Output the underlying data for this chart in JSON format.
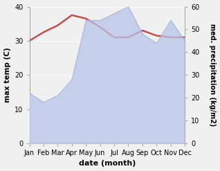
{
  "months": [
    "Jan",
    "Feb",
    "Mar",
    "Apr",
    "May",
    "Jun",
    "Jul",
    "Aug",
    "Sep",
    "Oct",
    "Nov",
    "Dec"
  ],
  "month_indices": [
    0,
    1,
    2,
    3,
    4,
    5,
    6,
    7,
    8,
    9,
    10,
    11
  ],
  "temperature": [
    30.0,
    32.5,
    34.5,
    37.5,
    36.5,
    34.0,
    31.0,
    31.0,
    33.0,
    31.5,
    31.0,
    31.0
  ],
  "precipitation": [
    22.0,
    18.0,
    21.0,
    28.0,
    54.0,
    54.0,
    57.0,
    60.0,
    48.0,
    44.0,
    54.0,
    45.0
  ],
  "temp_color": "#c0504d",
  "precip_color": "#b8c4e8",
  "precip_alpha": 0.75,
  "background_color": "#f0f0f0",
  "temp_ylim": [
    0,
    40
  ],
  "precip_ylim": [
    0,
    60
  ],
  "temp_yticks": [
    0,
    10,
    20,
    30,
    40
  ],
  "precip_yticks": [
    0,
    10,
    20,
    30,
    40,
    50,
    60
  ],
  "ylabel_left": "max temp (C)",
  "ylabel_right": "med. precipitation (kg/m2)",
  "xlabel": "date (month)"
}
